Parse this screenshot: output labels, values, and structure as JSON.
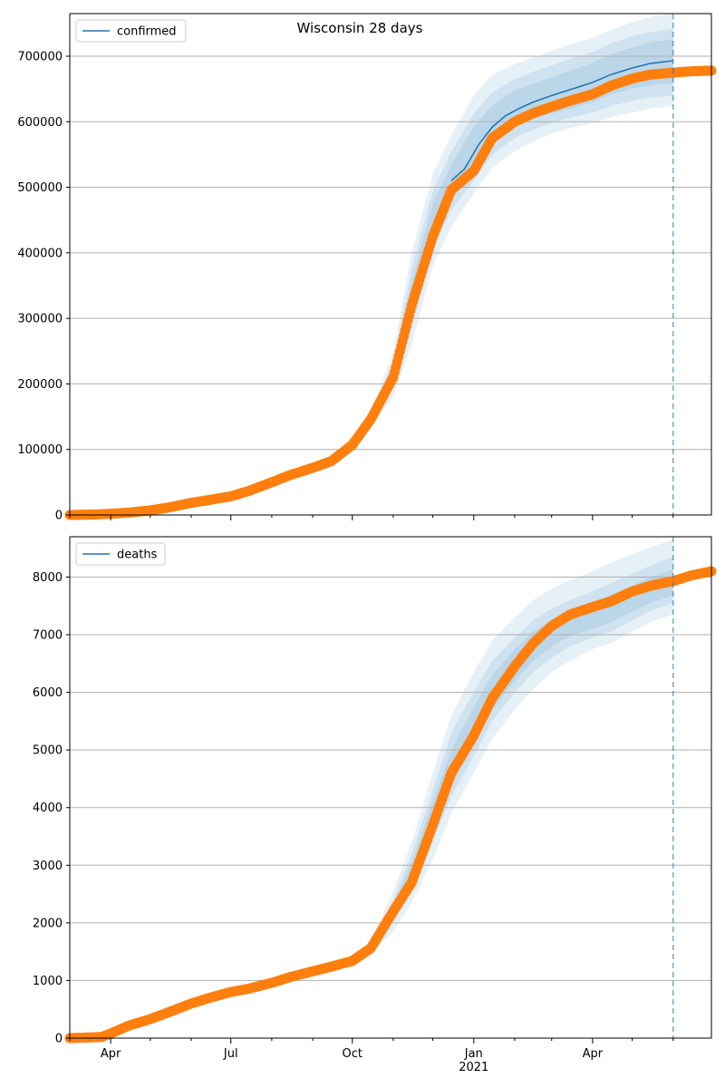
{
  "chart_data": [
    {
      "type": "line",
      "title": "Wisconsin 28 days",
      "xlabel": "",
      "ylabel": "",
      "legend": {
        "entries": [
          "confirmed"
        ],
        "placement": "top-left"
      },
      "grid": {
        "y": true,
        "x": false
      },
      "xlim": [
        "2020-03-01",
        "2021-06-30"
      ],
      "ylim": [
        0,
        765000
      ],
      "x_tick_labels": [
        "Apr",
        "Jul",
        "Oct",
        "Jan\n2021",
        "Apr"
      ],
      "y_ticks": [
        0,
        100000,
        200000,
        300000,
        400000,
        500000,
        600000,
        700000
      ],
      "y_tick_labels": [
        "0",
        "100000",
        "200000",
        "300000",
        "400000",
        "500000",
        "600000",
        "700000"
      ],
      "forecast_start": "2021-06-01",
      "colors": {
        "model": "#1f77b4",
        "observed": "#ff7f0e",
        "band": "#1f77b4"
      },
      "series": [
        {
          "name": "confirmed",
          "kind": "model-line",
          "points": [
            [
              "2020-12-15",
              510000
            ],
            [
              "2020-12-25",
              528000
            ],
            [
              "2021-01-05",
              566000
            ],
            [
              "2021-01-15",
              592000
            ],
            [
              "2021-01-25",
              609000
            ],
            [
              "2021-02-05",
              621000
            ],
            [
              "2021-02-15",
              630000
            ],
            [
              "2021-03-01",
              640000
            ],
            [
              "2021-03-15",
              649000
            ],
            [
              "2021-04-01",
              660000
            ],
            [
              "2021-04-15",
              672000
            ],
            [
              "2021-05-01",
              682000
            ],
            [
              "2021-05-15",
              689000
            ],
            [
              "2021-06-01",
              693000
            ]
          ]
        },
        {
          "kind": "observed",
          "points": [
            [
              "2020-03-01",
              0
            ],
            [
              "2020-03-20",
              800
            ],
            [
              "2020-04-01",
              1900
            ],
            [
              "2020-04-15",
              3700
            ],
            [
              "2020-05-01",
              7000
            ],
            [
              "2020-05-15",
              11500
            ],
            [
              "2020-06-01",
              18500
            ],
            [
              "2020-06-15",
              23000
            ],
            [
              "2020-07-01",
              28500
            ],
            [
              "2020-07-15",
              37000
            ],
            [
              "2020-08-01",
              50000
            ],
            [
              "2020-08-15",
              61000
            ],
            [
              "2020-09-01",
              72000
            ],
            [
              "2020-09-15",
              82000
            ],
            [
              "2020-10-01",
              107000
            ],
            [
              "2020-10-15",
              146000
            ],
            [
              "2020-11-01",
              210000
            ],
            [
              "2020-11-15",
              320000
            ],
            [
              "2020-12-01",
              425000
            ],
            [
              "2020-12-15",
              496000
            ],
            [
              "2021-01-01",
              525000
            ],
            [
              "2021-01-15",
              575000
            ],
            [
              "2021-02-01",
              600000
            ],
            [
              "2021-02-15",
              613000
            ],
            [
              "2021-03-01",
              623000
            ],
            [
              "2021-03-15",
              632000
            ],
            [
              "2021-04-01",
              642000
            ],
            [
              "2021-04-15",
              655000
            ],
            [
              "2021-05-01",
              666000
            ],
            [
              "2021-05-15",
              672000
            ],
            [
              "2021-06-01",
              675000
            ],
            [
              "2021-06-15",
              677000
            ],
            [
              "2021-06-30",
              678000
            ]
          ]
        }
      ],
      "bands": [
        {
          "points": [
            [
              "2020-10-15",
              136000,
              156000
            ],
            [
              "2020-11-01",
              180000,
              250000
            ],
            [
              "2020-11-15",
              260000,
              400000
            ],
            [
              "2020-12-01",
              380000,
              520000
            ],
            [
              "2020-12-15",
              440000,
              580000
            ],
            [
              "2021-01-01",
              490000,
              640000
            ],
            [
              "2021-01-15",
              530000,
              672000
            ],
            [
              "2021-02-01",
              555000,
              688000
            ],
            [
              "2021-02-15",
              570000,
              698000
            ],
            [
              "2021-03-01",
              582000,
              708000
            ],
            [
              "2021-03-15",
              590000,
              718000
            ],
            [
              "2021-04-01",
              598000,
              728000
            ],
            [
              "2021-04-15",
              607000,
              740000
            ],
            [
              "2021-05-01",
              614000,
              752000
            ],
            [
              "2021-05-15",
              620000,
              760000
            ],
            [
              "2021-06-01",
              624000,
              765000
            ]
          ]
        },
        {
          "points": [
            [
              "2020-10-15",
              140000,
              152000
            ],
            [
              "2020-11-01",
              195000,
              235000
            ],
            [
              "2020-11-15",
              285000,
              375000
            ],
            [
              "2020-12-01",
              405000,
              495000
            ],
            [
              "2020-12-15",
              465000,
              555000
            ],
            [
              "2021-01-01",
              510000,
              612000
            ],
            [
              "2021-01-15",
              550000,
              645000
            ],
            [
              "2021-02-01",
              575000,
              665000
            ],
            [
              "2021-02-15",
              588000,
              676000
            ],
            [
              "2021-03-01",
              598000,
              686000
            ],
            [
              "2021-03-15",
              606000,
              696000
            ],
            [
              "2021-04-01",
              614000,
              706000
            ],
            [
              "2021-04-15",
              624000,
              720000
            ],
            [
              "2021-05-01",
              632000,
              730000
            ],
            [
              "2021-05-15",
              637000,
              737000
            ],
            [
              "2021-06-01",
              640000,
              742000
            ]
          ]
        },
        {
          "points": [
            [
              "2020-10-15",
              143000,
              149000
            ],
            [
              "2020-11-01",
              208000,
              225000
            ],
            [
              "2020-11-15",
              305000,
              355000
            ],
            [
              "2020-12-01",
              425000,
              475000
            ],
            [
              "2020-12-15",
              485000,
              535000
            ],
            [
              "2021-01-01",
              525000,
              592000
            ],
            [
              "2021-01-15",
              565000,
              625000
            ],
            [
              "2021-02-01",
              592000,
              648000
            ],
            [
              "2021-02-15",
              604000,
              658000
            ],
            [
              "2021-03-01",
              613000,
              668000
            ],
            [
              "2021-03-15",
              620000,
              678000
            ],
            [
              "2021-04-01",
              630000,
              690000
            ],
            [
              "2021-04-15",
              642000,
              703000
            ],
            [
              "2021-05-01",
              651000,
              713000
            ],
            [
              "2021-05-15",
              656000,
              721000
            ],
            [
              "2021-06-01",
              659000,
              726000
            ]
          ]
        }
      ]
    },
    {
      "type": "line",
      "title": "",
      "xlabel": "",
      "ylabel": "",
      "legend": {
        "entries": [
          "deaths"
        ],
        "placement": "top-left"
      },
      "grid": {
        "y": true,
        "x": false
      },
      "xlim": [
        "2020-03-01",
        "2021-06-30"
      ],
      "ylim": [
        0,
        8700
      ],
      "x_tick_labels": [
        "Apr",
        "Jul",
        "Oct",
        "Jan\n2021",
        "Apr"
      ],
      "y_ticks": [
        0,
        1000,
        2000,
        3000,
        4000,
        5000,
        6000,
        7000,
        8000
      ],
      "y_tick_labels": [
        "0",
        "1000",
        "2000",
        "3000",
        "4000",
        "5000",
        "6000",
        "7000",
        "8000"
      ],
      "forecast_start": "2021-06-01",
      "colors": {
        "model": "#1f77b4",
        "observed": "#ff7f0e",
        "band": "#1f77b4"
      },
      "series": [
        {
          "name": "deaths",
          "kind": "model-line",
          "points": []
        },
        {
          "kind": "observed",
          "points": [
            [
              "2020-03-01",
              0
            ],
            [
              "2020-03-25",
              20
            ],
            [
              "2020-04-01",
              80
            ],
            [
              "2020-04-15",
              220
            ],
            [
              "2020-05-01",
              330
            ],
            [
              "2020-05-15",
              450
            ],
            [
              "2020-06-01",
              600
            ],
            [
              "2020-06-15",
              700
            ],
            [
              "2020-07-01",
              800
            ],
            [
              "2020-07-15",
              860
            ],
            [
              "2020-08-01",
              960
            ],
            [
              "2020-08-15",
              1060
            ],
            [
              "2020-09-01",
              1160
            ],
            [
              "2020-09-15",
              1240
            ],
            [
              "2020-10-01",
              1340
            ],
            [
              "2020-10-15",
              1560
            ],
            [
              "2020-11-01",
              2200
            ],
            [
              "2020-11-15",
              2700
            ],
            [
              "2020-12-01",
              3700
            ],
            [
              "2020-12-15",
              4600
            ],
            [
              "2021-01-01",
              5250
            ],
            [
              "2021-01-15",
              5900
            ],
            [
              "2021-02-01",
              6450
            ],
            [
              "2021-02-15",
              6850
            ],
            [
              "2021-03-01",
              7150
            ],
            [
              "2021-03-15",
              7350
            ],
            [
              "2021-04-01",
              7480
            ],
            [
              "2021-04-15",
              7580
            ],
            [
              "2021-05-01",
              7750
            ],
            [
              "2021-05-15",
              7850
            ],
            [
              "2021-06-01",
              7930
            ],
            [
              "2021-06-15",
              8030
            ],
            [
              "2021-06-30",
              8100
            ]
          ]
        }
      ],
      "bands": [
        {
          "points": [
            [
              "2020-10-15",
              1480,
              1680
            ],
            [
              "2020-11-01",
              1850,
              2550
            ],
            [
              "2020-11-15",
              2350,
              3400
            ],
            [
              "2020-12-01",
              3100,
              4600
            ],
            [
              "2020-12-15",
              3900,
              5600
            ],
            [
              "2021-01-01",
              4600,
              6350
            ],
            [
              "2021-01-15",
              5200,
              6900
            ],
            [
              "2021-02-01",
              5700,
              7300
            ],
            [
              "2021-02-15",
              6050,
              7600
            ],
            [
              "2021-03-01",
              6350,
              7800
            ],
            [
              "2021-03-15",
              6550,
              7950
            ],
            [
              "2021-04-01",
              6750,
              8100
            ],
            [
              "2021-04-15",
              6850,
              8250
            ],
            [
              "2021-05-01",
              7050,
              8400
            ],
            [
              "2021-05-15",
              7220,
              8520
            ],
            [
              "2021-06-01",
              7350,
              8650
            ]
          ]
        },
        {
          "points": [
            [
              "2020-10-15",
              1520,
              1640
            ],
            [
              "2020-11-01",
              2000,
              2400
            ],
            [
              "2020-11-15",
              2550,
              3200
            ],
            [
              "2020-12-01",
              3400,
              4300
            ],
            [
              "2020-12-15",
              4200,
              5300
            ],
            [
              "2021-01-01",
              4900,
              6000
            ],
            [
              "2021-01-15",
              5500,
              6550
            ],
            [
              "2021-02-01",
              6000,
              6950
            ],
            [
              "2021-02-15",
              6350,
              7250
            ],
            [
              "2021-03-01",
              6600,
              7450
            ],
            [
              "2021-03-15",
              6800,
              7600
            ],
            [
              "2021-04-01",
              6950,
              7750
            ],
            [
              "2021-04-15",
              7050,
              7900
            ],
            [
              "2021-05-01",
              7250,
              8050
            ],
            [
              "2021-05-15",
              7420,
              8200
            ],
            [
              "2021-06-01",
              7550,
              8350
            ]
          ]
        },
        {
          "points": [
            [
              "2020-10-15",
              1550,
              1610
            ],
            [
              "2020-11-01",
              2100,
              2300
            ],
            [
              "2020-11-15",
              2700,
              3050
            ],
            [
              "2020-12-01",
              3600,
              4100
            ],
            [
              "2020-12-15",
              4400,
              5000
            ],
            [
              "2021-01-01",
              5100,
              5750
            ],
            [
              "2021-01-15",
              5700,
              6300
            ],
            [
              "2021-02-01",
              6200,
              6750
            ],
            [
              "2021-02-15",
              6550,
              7050
            ],
            [
              "2021-03-01",
              6800,
              7250
            ],
            [
              "2021-03-15",
              6980,
              7400
            ],
            [
              "2021-04-01",
              7100,
              7550
            ],
            [
              "2021-04-15",
              7220,
              7700
            ],
            [
              "2021-05-01",
              7400,
              7850
            ],
            [
              "2021-05-15",
              7560,
              8000
            ],
            [
              "2021-06-01",
              7680,
              8130
            ]
          ]
        }
      ]
    }
  ]
}
